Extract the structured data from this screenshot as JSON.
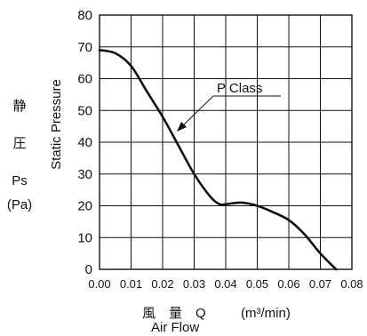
{
  "chart_data": {
    "type": "line",
    "xlabel_jp": "風　量　Q",
    "xlabel_unit": "(m³/min)",
    "xlabel_en": "Air Flow",
    "ylabel_jp_1": "静",
    "ylabel_jp_2": "圧",
    "ylabel_symbol": "Ps",
    "ylabel_unit": "(Pa)",
    "ylabel_en": "Static Pressure",
    "xlim": [
      0,
      0.08
    ],
    "ylim": [
      0,
      80
    ],
    "x_ticks": [
      "0.00",
      "0.01",
      "0.02",
      "0.03",
      "0.04",
      "0.05",
      "0.06",
      "0.07",
      "0.08"
    ],
    "y_ticks": [
      "0",
      "10",
      "20",
      "30",
      "40",
      "50",
      "60",
      "70",
      "80"
    ],
    "grid": true,
    "annotation": "P Class",
    "series": [
      {
        "name": "P Class",
        "x": [
          0.0,
          0.005,
          0.01,
          0.015,
          0.02,
          0.025,
          0.03,
          0.035,
          0.038,
          0.04,
          0.045,
          0.05,
          0.055,
          0.06,
          0.065,
          0.07,
          0.075
        ],
        "y": [
          69,
          68,
          64,
          56,
          48,
          39,
          30,
          23,
          20.5,
          20.5,
          21,
          20,
          18,
          15.5,
          11,
          5,
          0
        ]
      }
    ]
  }
}
